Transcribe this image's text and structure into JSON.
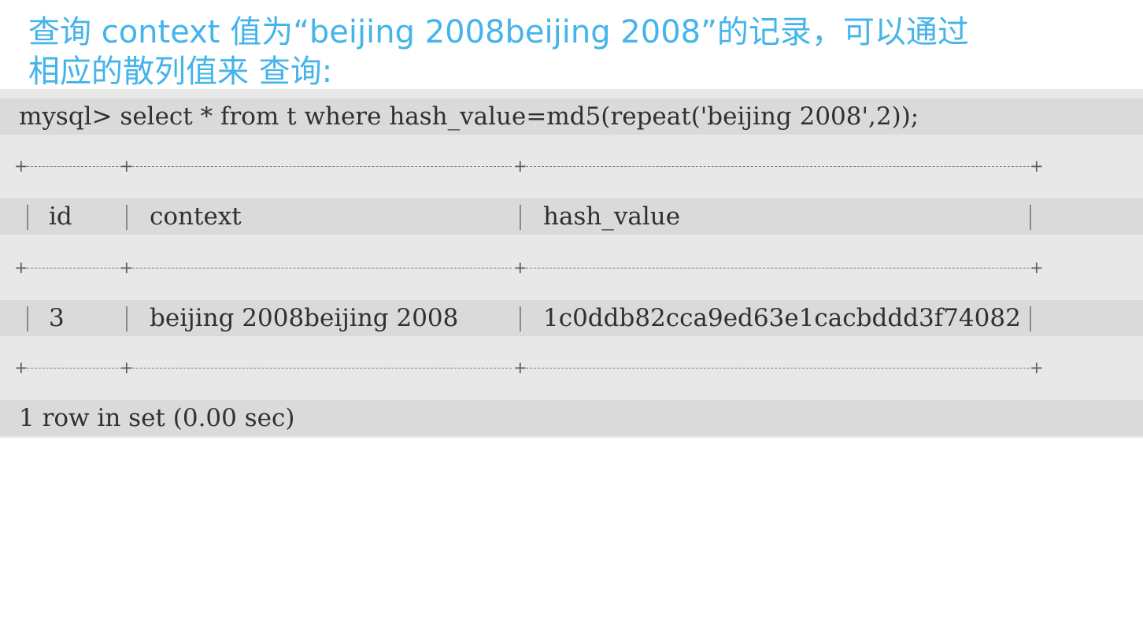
{
  "heading": {
    "line1": "查询 context 值为“beijing 2008beijing 2008”的记录，可以通过",
    "line2": "相应的散列值来 查询:"
  },
  "terminal": {
    "query": "mysql> select * from t where hash_value=md5(repeat('beijing 2008',2));",
    "table": {
      "columns": [
        "id",
        "context",
        "hash_value"
      ],
      "rows": [
        [
          "3",
          "beijing 2008beijing 2008",
          "1c0ddb82cca9ed63e1cacbddd3f74082"
        ]
      ]
    },
    "footer": "1 row in set (0.00 sec)"
  }
}
